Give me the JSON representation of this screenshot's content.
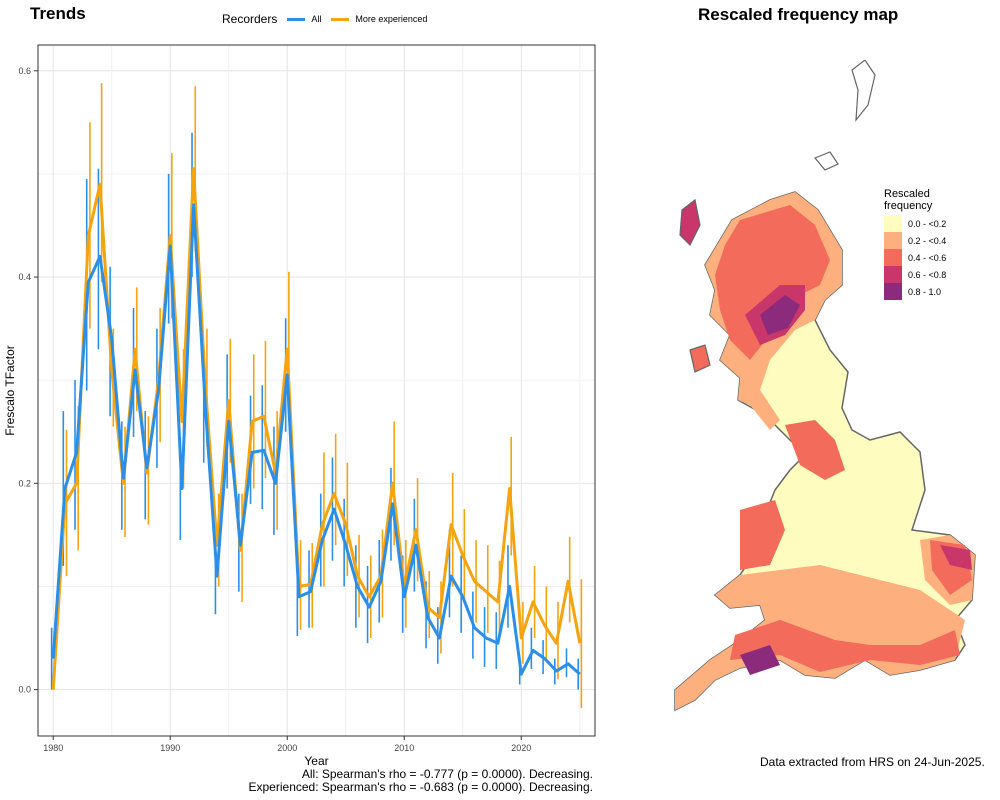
{
  "trends_title": "Trends",
  "map_title": "Rescaled frequency map",
  "legend": {
    "title": "Recorders",
    "series_all": "All",
    "series_exp": "More experienced"
  },
  "captions": {
    "line1": "All: Spearman's rho = -0.777 (p = 0.0000). Decreasing.",
    "line2": "Experienced: Spearman's rho = -0.683 (p = 0.0000). Decreasing."
  },
  "hrs_note": "Data extracted from HRS on 24-Jun-2025.",
  "map_legend": {
    "title_line1": "Rescaled",
    "title_line2": "frequency",
    "classes": [
      {
        "label": "0.0 - <0.2",
        "color": "#fefcbf"
      },
      {
        "label": "0.2 - <0.4",
        "color": "#fdb07e"
      },
      {
        "label": "0.4 - <0.6",
        "color": "#f26b5b"
      },
      {
        "label": "0.6 - <0.8",
        "color": "#c8366a"
      },
      {
        "label": "0.8 - 1.0",
        "color": "#8c2a7c"
      }
    ]
  },
  "colors": {
    "all": "#2b8fe8",
    "experienced": "#f5a30f",
    "outline": "#555555"
  },
  "chart_data": {
    "type": "line",
    "title": "Trends",
    "xlabel": "Year",
    "ylabel": "Frescalo TFactor",
    "xlim": [
      1978.7,
      2026.3
    ],
    "ylim": [
      -0.045,
      0.625
    ],
    "xticks": [
      1980,
      1990,
      2000,
      2010,
      2020
    ],
    "yticks": [
      0.0,
      0.2,
      0.4,
      0.6
    ],
    "ytick_labels": [
      "0.0",
      "0.2",
      "0.4",
      "0.6"
    ],
    "grid": true,
    "legend_position": "top",
    "x": [
      1980,
      1981,
      1982,
      1983,
      1984,
      1985,
      1986,
      1987,
      1988,
      1989,
      1990,
      1991,
      1992,
      1993,
      1994,
      1995,
      1996,
      1997,
      1998,
      1999,
      2000,
      2001,
      2002,
      2003,
      2004,
      2005,
      2006,
      2007,
      2008,
      2009,
      2010,
      2011,
      2012,
      2013,
      2014,
      2015,
      2016,
      2017,
      2018,
      2019,
      2020,
      2021,
      2022,
      2023,
      2024,
      2025
    ],
    "series": [
      {
        "name": "All",
        "values": [
          0.03,
          0.195,
          0.23,
          0.395,
          0.42,
          0.34,
          0.205,
          0.31,
          0.215,
          0.29,
          0.43,
          0.195,
          0.47,
          0.275,
          0.11,
          0.26,
          0.14,
          0.23,
          0.232,
          0.2,
          0.305,
          0.09,
          0.095,
          0.145,
          0.175,
          0.14,
          0.1,
          0.08,
          0.105,
          0.18,
          0.09,
          0.14,
          0.07,
          0.05,
          0.11,
          0.09,
          0.06,
          0.05,
          0.045,
          0.1,
          0.015,
          0.038,
          0.03,
          0.018,
          0.025,
          0.015
        ],
        "err_low": [
          0.0,
          0.12,
          0.155,
          0.29,
          0.33,
          0.265,
          0.155,
          0.245,
          0.165,
          0.215,
          0.355,
          0.145,
          0.4,
          0.22,
          0.073,
          0.195,
          0.095,
          0.18,
          0.175,
          0.15,
          0.25,
          0.052,
          0.06,
          0.1,
          0.125,
          0.1,
          0.06,
          0.045,
          0.065,
          0.125,
          0.055,
          0.095,
          0.04,
          0.025,
          0.07,
          0.055,
          0.03,
          0.022,
          0.02,
          0.06,
          0.005,
          0.02,
          0.015,
          0.005,
          0.012,
          0.0
        ],
        "err_high": [
          0.06,
          0.27,
          0.3,
          0.495,
          0.505,
          0.41,
          0.26,
          0.37,
          0.27,
          0.35,
          0.5,
          0.245,
          0.54,
          0.335,
          0.145,
          0.325,
          0.19,
          0.285,
          0.295,
          0.255,
          0.36,
          0.127,
          0.135,
          0.19,
          0.225,
          0.185,
          0.14,
          0.12,
          0.145,
          0.215,
          0.13,
          0.185,
          0.105,
          0.08,
          0.155,
          0.13,
          0.095,
          0.08,
          0.075,
          0.14,
          0.03,
          0.06,
          0.048,
          0.03,
          0.04,
          0.03
        ]
      },
      {
        "name": "More experienced",
        "values": [
          0.0,
          0.18,
          0.2,
          0.44,
          0.49,
          0.31,
          0.2,
          0.33,
          0.21,
          0.3,
          0.44,
          0.26,
          0.505,
          0.295,
          0.14,
          0.28,
          0.135,
          0.26,
          0.265,
          0.21,
          0.33,
          0.1,
          0.102,
          0.16,
          0.19,
          0.16,
          0.11,
          0.09,
          0.11,
          0.2,
          0.1,
          0.155,
          0.08,
          0.07,
          0.16,
          0.13,
          0.105,
          0.095,
          0.085,
          0.195,
          0.05,
          0.085,
          0.062,
          0.045,
          0.105,
          0.045
        ],
        "err_low": [
          0.0,
          0.11,
          0.135,
          0.35,
          0.395,
          0.255,
          0.148,
          0.27,
          0.16,
          0.24,
          0.36,
          0.195,
          0.425,
          0.235,
          0.1,
          0.22,
          0.085,
          0.195,
          0.205,
          0.155,
          0.26,
          0.058,
          0.06,
          0.1,
          0.14,
          0.11,
          0.07,
          0.05,
          0.07,
          0.14,
          0.06,
          0.105,
          0.05,
          0.035,
          0.1,
          0.085,
          0.065,
          0.055,
          0.05,
          0.13,
          0.025,
          0.05,
          0.03,
          0.01,
          0.065,
          -0.018
        ],
        "err_high": [
          0.0,
          0.252,
          0.275,
          0.55,
          0.588,
          0.35,
          0.255,
          0.39,
          0.265,
          0.37,
          0.52,
          0.33,
          0.585,
          0.35,
          0.19,
          0.34,
          0.19,
          0.325,
          0.338,
          0.27,
          0.405,
          0.145,
          0.142,
          0.23,
          0.248,
          0.22,
          0.15,
          0.13,
          0.155,
          0.26,
          0.145,
          0.205,
          0.115,
          0.105,
          0.21,
          0.175,
          0.145,
          0.14,
          0.125,
          0.245,
          0.085,
          0.12,
          0.1,
          0.085,
          0.148,
          0.107
        ]
      }
    ]
  }
}
